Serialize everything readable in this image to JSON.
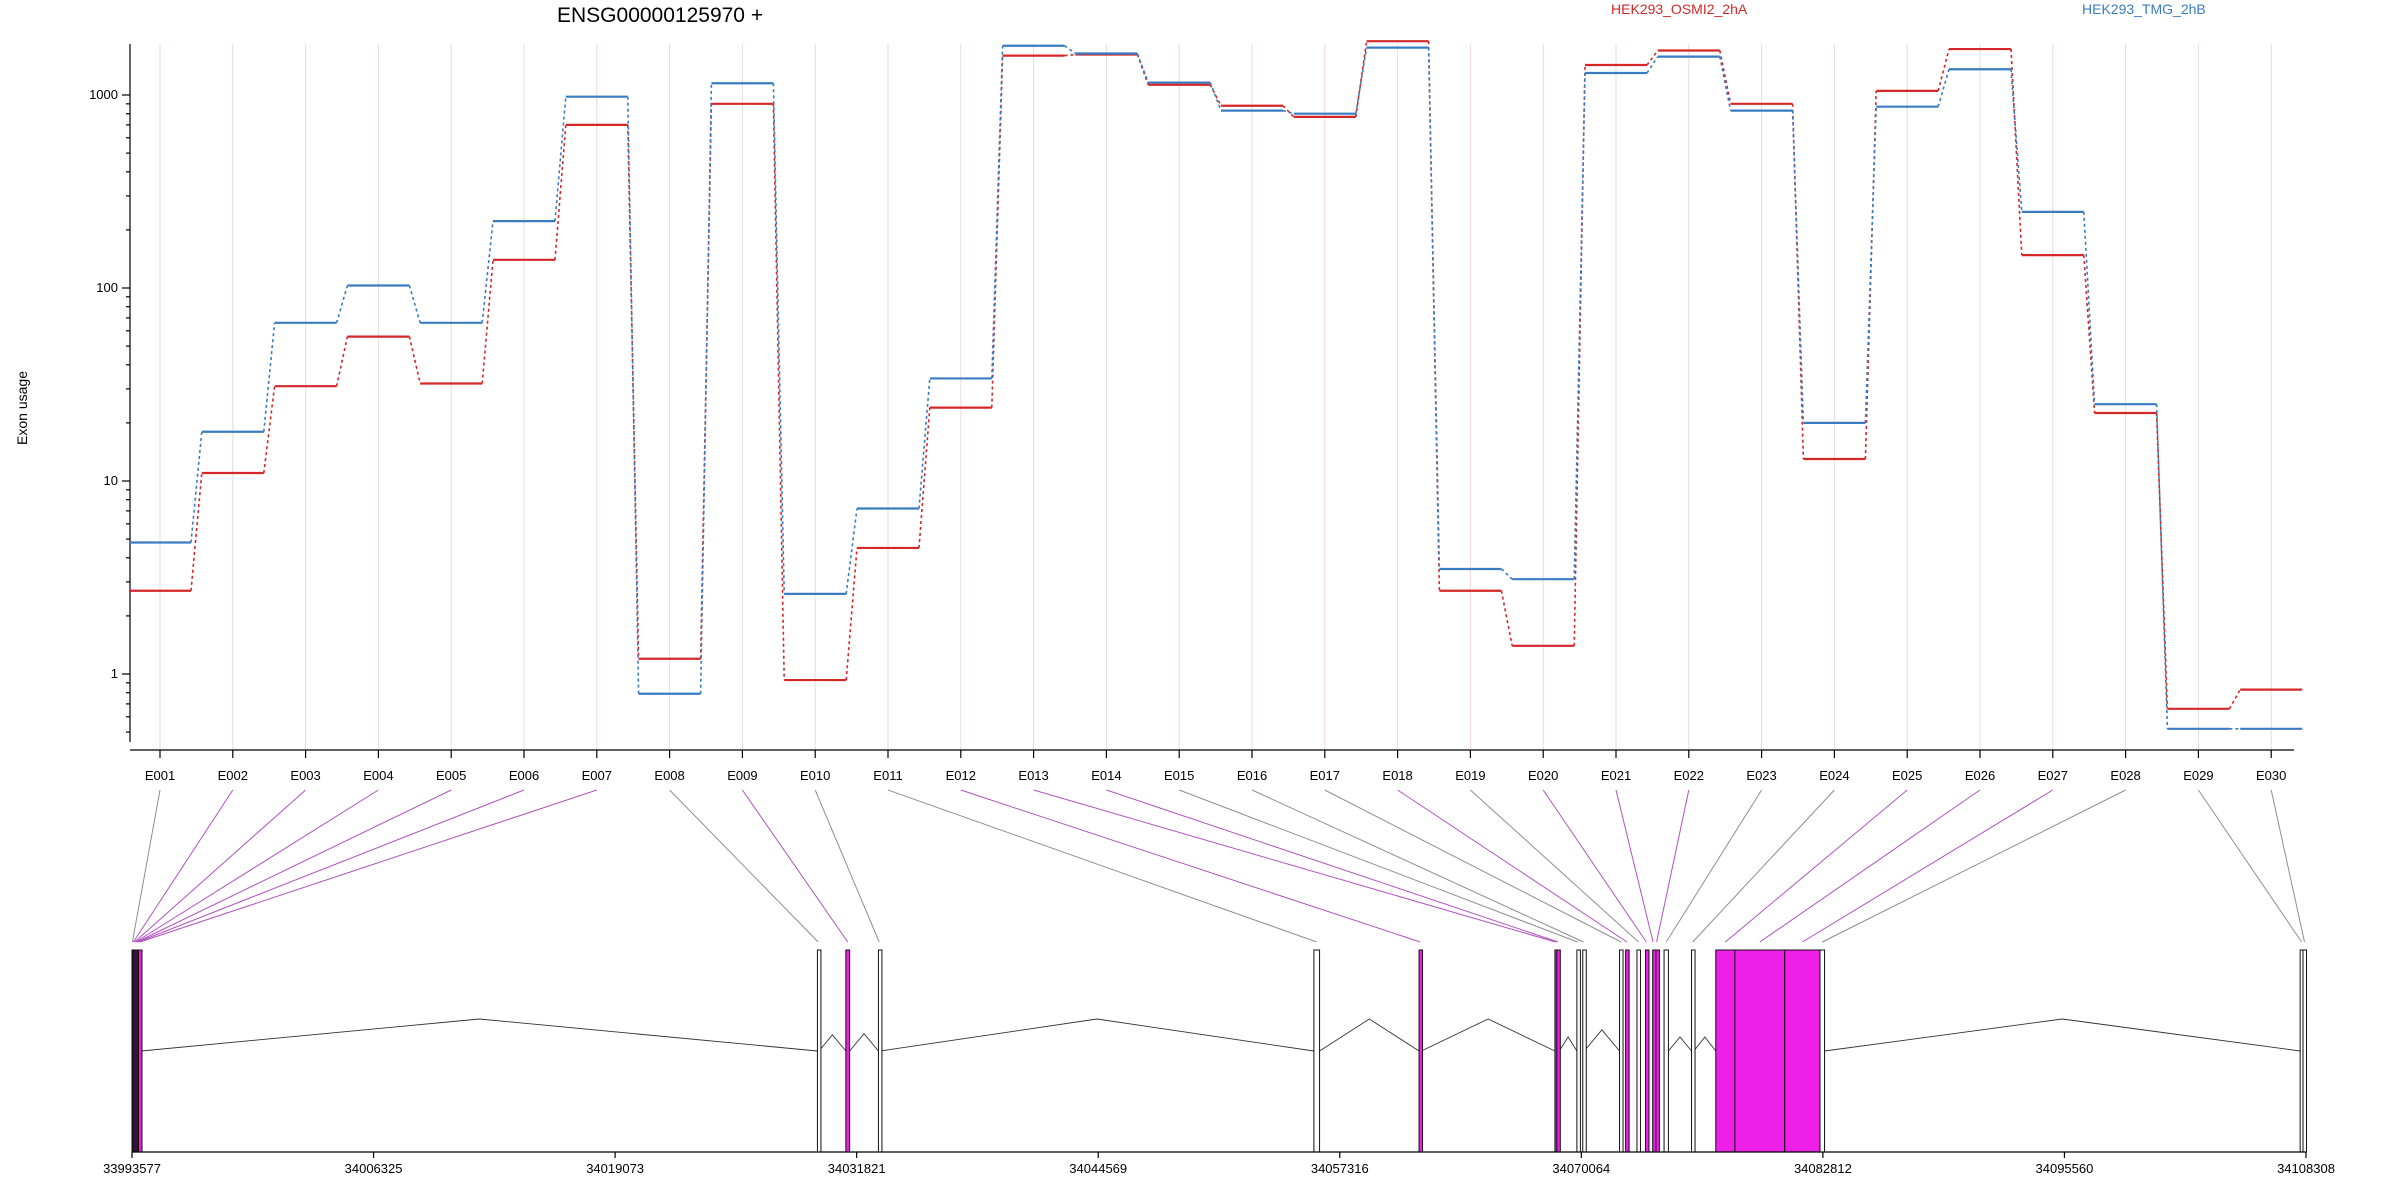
{
  "chart_data": {
    "type": "line",
    "title": "ENSG00000125970 +",
    "ylabel": "Exon usage",
    "yscale": "log",
    "ylim": [
      0.5,
      2500
    ],
    "yticks": [
      1,
      10,
      100,
      1000
    ],
    "ytick_labels": [
      "1",
      "10",
      "100",
      "1000"
    ],
    "grid": "vertical at exons",
    "legend_position": "top-right",
    "categories": [
      "E001",
      "E002",
      "E003",
      "E004",
      "E005",
      "E006",
      "E007",
      "E008",
      "E009",
      "E010",
      "E011",
      "E012",
      "E013",
      "E014",
      "E015",
      "E016",
      "E017",
      "E018",
      "E019",
      "E020",
      "E021",
      "E022",
      "E023",
      "E024",
      "E025",
      "E026",
      "E027",
      "E028",
      "E029",
      "E030"
    ],
    "series": [
      {
        "name": "HEK293_OSMI2_2hA",
        "color": "#d62728",
        "values": [
          2.7,
          11,
          31,
          56,
          32,
          140,
          700,
          1.2,
          900,
          0.93,
          4.5,
          24,
          1600,
          1620,
          1130,
          880,
          770,
          1900,
          2.7,
          1.4,
          1430,
          1700,
          900,
          13,
          1050,
          1730,
          148,
          22.5,
          0.66,
          0.83
        ]
      },
      {
        "name": "HEK293_TMG_2hB",
        "color": "#3a7cc2",
        "values": [
          4.8,
          18,
          66,
          103,
          66,
          222,
          980,
          0.79,
          1150,
          2.6,
          7.2,
          34,
          1800,
          1640,
          1160,
          830,
          800,
          1760,
          3.5,
          3.1,
          1300,
          1580,
          830,
          20,
          870,
          1360,
          248,
          25,
          0.52,
          0.52
        ]
      }
    ],
    "gene_model": {
      "coordinate_ticks": [
        "33993577",
        "34006325",
        "34019073",
        "34031821",
        "34044569",
        "34057316",
        "34070064",
        "34082812",
        "34095560",
        "34108308"
      ],
      "genomic_range": [
        33993577,
        34108308
      ],
      "exon_bins": [
        {
          "id": "E001",
          "start": 33993577,
          "end": 33993620,
          "significant": false
        },
        {
          "id": "E002",
          "start": 33993620,
          "end": 33993680,
          "significant": true
        },
        {
          "id": "E003",
          "start": 33993680,
          "end": 33993740,
          "significant": true
        },
        {
          "id": "E004",
          "start": 33993740,
          "end": 33993800,
          "significant": true
        },
        {
          "id": "E005",
          "start": 33993800,
          "end": 33993860,
          "significant": true
        },
        {
          "id": "E006",
          "start": 33993860,
          "end": 33993920,
          "significant": true
        },
        {
          "id": "E007",
          "start": 33993920,
          "end": 33994060,
          "significant": true
        },
        {
          "id": "E008",
          "start": 34029750,
          "end": 34029830,
          "significant": false
        },
        {
          "id": "E009",
          "start": 34031250,
          "end": 34031450,
          "significant": true
        },
        {
          "id": "E010",
          "start": 34032970,
          "end": 34033050,
          "significant": false
        },
        {
          "id": "E011",
          "start": 34055950,
          "end": 34056250,
          "significant": false
        },
        {
          "id": "E012",
          "start": 34061500,
          "end": 34061620,
          "significant": true
        },
        {
          "id": "E013",
          "start": 34068670,
          "end": 34068740,
          "significant": true
        },
        {
          "id": "E014",
          "start": 34068770,
          "end": 34068900,
          "significant": true
        },
        {
          "id": "E015",
          "start": 34069830,
          "end": 34069900,
          "significant": false
        },
        {
          "id": "E016",
          "start": 34070140,
          "end": 34070220,
          "significant": false
        },
        {
          "id": "E017",
          "start": 34072080,
          "end": 34072250,
          "significant": false
        },
        {
          "id": "E018",
          "start": 34072400,
          "end": 34072540,
          "significant": true
        },
        {
          "id": "E019",
          "start": 34073000,
          "end": 34073170,
          "significant": false
        },
        {
          "id": "E020",
          "start": 34073450,
          "end": 34073540,
          "significant": true
        },
        {
          "id": "E021",
          "start": 34073830,
          "end": 34073870,
          "significant": true
        },
        {
          "id": "E022",
          "start": 34074000,
          "end": 34074070,
          "significant": true
        },
        {
          "id": "E023",
          "start": 34074430,
          "end": 34074660,
          "significant": false
        },
        {
          "id": "E024",
          "start": 34075880,
          "end": 34076000,
          "significant": false
        },
        {
          "id": "E025",
          "start": 34077160,
          "end": 34078170,
          "significant": true
        },
        {
          "id": "E026",
          "start": 34078170,
          "end": 34080800,
          "significant": true
        },
        {
          "id": "E027",
          "start": 34080800,
          "end": 34082660,
          "significant": true
        },
        {
          "id": "E028",
          "start": 34082660,
          "end": 34082900,
          "significant": false
        },
        {
          "id": "E029",
          "start": 34108000,
          "end": 34108150,
          "significant": false
        },
        {
          "id": "E030",
          "start": 34108150,
          "end": 34108308,
          "significant": false
        }
      ]
    }
  },
  "colors": {
    "series_red": "#d62728",
    "series_blue": "#3a7cc2",
    "significant_exon": "#ee1fe7",
    "significant_connector": "#b152c0",
    "neutral_exon": "#ffffff",
    "neutral_connector": "#8f8f8f",
    "grid": "#f1d7d7"
  }
}
